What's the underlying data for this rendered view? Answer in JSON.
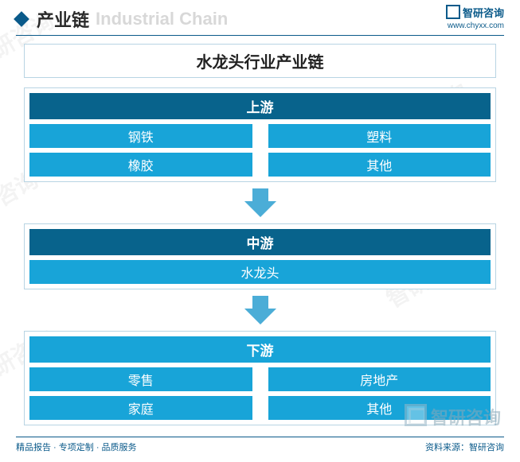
{
  "header": {
    "title_cn": "产业链",
    "title_en": "Industrial Chain",
    "brand_name": "智研咨询",
    "brand_url": "www.chyxx.com"
  },
  "chain": {
    "title": "水龙头行业产业链",
    "stages": [
      {
        "label": "上游",
        "header_bg": "#08638c",
        "cell_bg": "#18a4d8",
        "layout": "grid2",
        "items": [
          "钢铁",
          "塑料",
          "橡胶",
          "其他"
        ]
      },
      {
        "label": "中游",
        "header_bg": "#08638c",
        "cell_bg": "#18a4d8",
        "layout": "grid1",
        "items": [
          "水龙头"
        ]
      },
      {
        "label": "下游",
        "header_bg": "#18a4d8",
        "cell_bg": "#18a4d8",
        "layout": "grid2",
        "items": [
          "零售",
          "房地产",
          "家庭",
          "其他"
        ]
      }
    ],
    "arrow_color_top": "#8cc9e6",
    "arrow_color_bottom": "#1597cb"
  },
  "footer": {
    "left": "精品报告 · 专项定制 · 品质服务",
    "right": "资料来源：智研咨询"
  },
  "watermark_text": "智研咨询",
  "bottom_logo_text": "智研咨询",
  "colors": {
    "primary": "#0a5a8a",
    "border": "#b8d4e3",
    "bg": "#ffffff"
  }
}
